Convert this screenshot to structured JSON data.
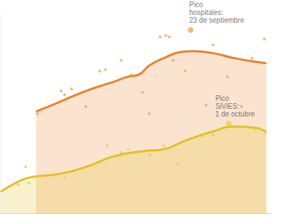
{
  "chart_data": {
    "type": "line",
    "tick_labels": false,
    "grid": false,
    "xlim": [
      0,
      100
    ],
    "ylim": [
      0,
      100
    ],
    "series": [
      {
        "type": "area",
        "color": "#e8822a",
        "x": [
          13.1,
          20.9,
          31.4,
          41.9,
          47.1,
          51,
          55,
          60.2,
          66.8,
          70.7,
          78.5,
          86.4,
          94.2,
          98.2
        ],
        "values": [
          51.1,
          55.4,
          61.4,
          66.1,
          68.6,
          69.6,
          74.3,
          77.9,
          81.1,
          81.4,
          80.4,
          77.9,
          76.1,
          75.4
        ]
      },
      {
        "type": "area",
        "color": "#e3c01f",
        "x": [
          0,
          5.2,
          10.5,
          20.9,
          31.4,
          41.9,
          52.4,
          60.2,
          68.1,
          78.5,
          86.4,
          94.2,
          98.2
        ],
        "values": [
          10.7,
          15,
          17.9,
          19.6,
          23.2,
          28.6,
          31.1,
          32.1,
          36.4,
          41.1,
          43.6,
          42.9,
          40.7
        ]
      },
      {
        "type": "scatter",
        "color": "#f0a64c",
        "x": [
          13.6,
          22.3,
          23.6,
          26.2,
          31.4,
          36.6,
          38.7,
          44.5,
          48.4,
          52.4,
          55,
          58.9,
          61,
          62.3,
          63.6,
          68.1,
          75.9,
          78.5,
          83.8,
          89,
          92.9,
          97.4
        ],
        "values": [
          50,
          61.4,
          59.6,
          62.5,
          53.6,
          71.4,
          72.1,
          76.8,
          69.6,
          60.7,
          50,
          88.6,
          89.3,
          88.6,
          76.8,
          71.4,
          54.3,
          84.6,
          68.6,
          53.6,
          77.9,
          87.5
        ]
      },
      {
        "type": "scatter",
        "color": "#e6cd4f",
        "x": [
          6.5,
          9.2,
          10.5,
          23.6,
          39.3,
          44.5,
          47.1,
          55,
          60.2,
          65.4,
          74.6,
          78.5,
          90.3,
          94.2
        ],
        "values": [
          14.3,
          23.2,
          15,
          17.9,
          33.9,
          30.4,
          32.1,
          29.3,
          33.9,
          25,
          38.6,
          39.3,
          43.6,
          42.1
        ]
      }
    ],
    "annotations": [
      {
        "text": "Pico\nhospitales:\n23 de septiembre",
        "x": 70.2,
        "y": 92.1,
        "color": "#f0a64c"
      },
      {
        "text": "Pico\nSiViES:\n1 de octubre",
        "x": 84.3,
        "y": 45,
        "color": "#e6cd4f"
      }
    ]
  }
}
